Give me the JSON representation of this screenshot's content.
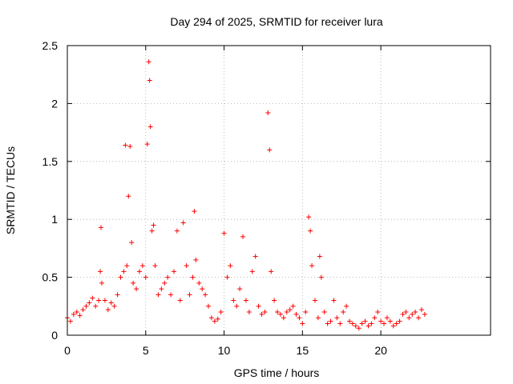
{
  "chart_data": {
    "type": "scatter",
    "title": "Day 294 of 2025, SRMTID for receiver lura",
    "xlabel": "GPS time / hours",
    "ylabel": "SRMTID / TECUs",
    "xlim": [
      0,
      27
    ],
    "ylim": [
      0,
      2.5
    ],
    "xticks": [
      0,
      5,
      10,
      15,
      20
    ],
    "xtick_labels": [
      "0",
      "5",
      "10",
      "15",
      "20"
    ],
    "yticks": [
      0,
      0.5,
      1,
      1.5,
      2,
      2.5
    ],
    "ytick_labels": [
      "0",
      "0.5",
      "1",
      "1.5",
      "2",
      "2.5"
    ],
    "grid": true,
    "marker": "+",
    "marker_color": "#ff0000",
    "series": [
      {
        "name": "SRMTID",
        "x": [
          0.0,
          0.2,
          0.4,
          0.6,
          0.8,
          1.0,
          1.2,
          1.4,
          1.6,
          1.8,
          2.0,
          2.1,
          2.15,
          2.2,
          2.4,
          2.6,
          2.8,
          3.0,
          3.2,
          3.4,
          3.6,
          3.7,
          3.8,
          3.9,
          4.0,
          4.1,
          4.2,
          4.4,
          4.6,
          4.8,
          5.0,
          5.1,
          5.2,
          5.25,
          5.3,
          5.4,
          5.5,
          5.6,
          5.8,
          6.0,
          6.2,
          6.4,
          6.6,
          6.8,
          7.0,
          7.2,
          7.4,
          7.6,
          7.8,
          8.0,
          8.1,
          8.2,
          8.4,
          8.6,
          8.8,
          9.0,
          9.2,
          9.4,
          9.6,
          9.8,
          10.0,
          10.2,
          10.4,
          10.6,
          10.8,
          11.0,
          11.2,
          11.4,
          11.6,
          11.8,
          12.0,
          12.2,
          12.4,
          12.6,
          12.8,
          12.9,
          13.0,
          13.2,
          13.4,
          13.6,
          13.8,
          14.0,
          14.2,
          14.4,
          14.6,
          14.8,
          15.0,
          15.2,
          15.4,
          15.5,
          15.6,
          15.8,
          16.0,
          16.1,
          16.2,
          16.4,
          16.6,
          16.8,
          17.0,
          17.2,
          17.4,
          17.6,
          17.8,
          18.0,
          18.2,
          18.4,
          18.6,
          18.8,
          19.0,
          19.2,
          19.4,
          19.6,
          19.8,
          20.0,
          20.2,
          20.4,
          20.6,
          20.8,
          21.0,
          21.2,
          21.4,
          21.6,
          21.8,
          22.0,
          22.2,
          22.4,
          22.6,
          22.8
        ],
        "y": [
          0.15,
          0.12,
          0.18,
          0.2,
          0.17,
          0.22,
          0.25,
          0.28,
          0.32,
          0.25,
          0.3,
          0.55,
          0.93,
          0.45,
          0.3,
          0.22,
          0.28,
          0.25,
          0.35,
          0.5,
          0.55,
          1.64,
          0.6,
          1.2,
          1.63,
          0.8,
          0.45,
          0.4,
          0.55,
          0.6,
          0.5,
          1.65,
          2.36,
          2.2,
          1.8,
          0.9,
          0.95,
          0.6,
          0.35,
          0.4,
          0.45,
          0.5,
          0.35,
          0.55,
          0.9,
          0.3,
          0.97,
          0.6,
          0.35,
          0.5,
          1.07,
          0.65,
          0.45,
          0.4,
          0.35,
          0.25,
          0.15,
          0.12,
          0.14,
          0.2,
          0.88,
          0.5,
          0.6,
          0.3,
          0.25,
          0.4,
          0.85,
          0.3,
          0.2,
          0.55,
          0.68,
          0.25,
          0.18,
          0.2,
          1.92,
          1.6,
          0.55,
          0.3,
          0.2,
          0.18,
          0.15,
          0.2,
          0.22,
          0.25,
          0.18,
          0.15,
          0.1,
          0.2,
          1.02,
          0.9,
          0.6,
          0.3,
          0.15,
          0.68,
          0.5,
          0.2,
          0.1,
          0.12,
          0.3,
          0.15,
          0.1,
          0.2,
          0.25,
          0.12,
          0.1,
          0.08,
          0.06,
          0.1,
          0.12,
          0.08,
          0.1,
          0.15,
          0.2,
          0.12,
          0.1,
          0.15,
          0.12,
          0.08,
          0.1,
          0.12,
          0.18,
          0.2,
          0.15,
          0.18,
          0.2,
          0.15,
          0.22,
          0.18
        ]
      }
    ]
  }
}
